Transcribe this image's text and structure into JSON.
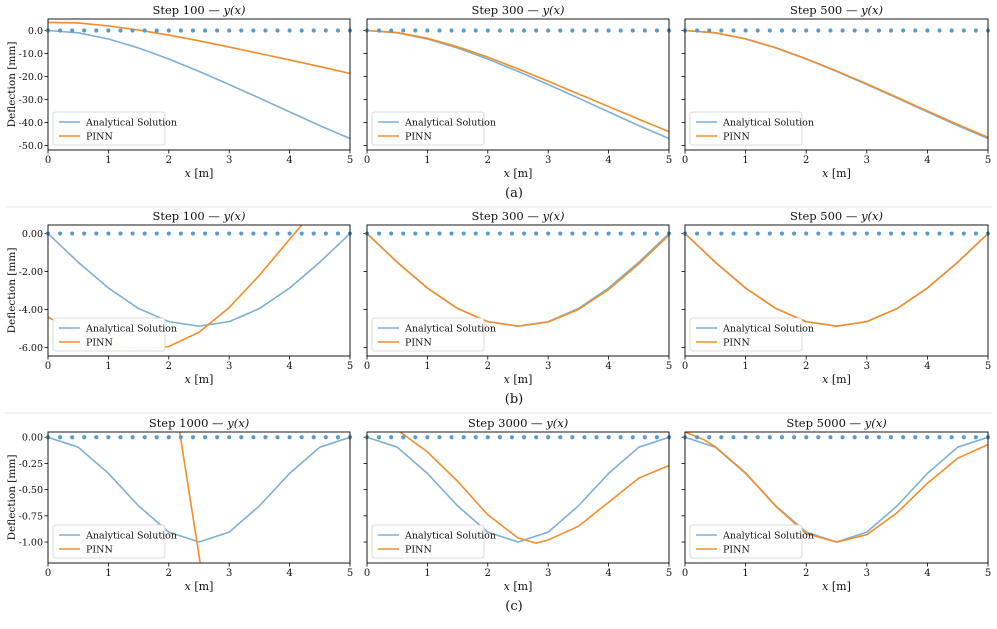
{
  "figure": {
    "rows": [
      {
        "label": "(a)",
        "ylabel": "Deflection [mm]",
        "ylim": [
          -52,
          5
        ],
        "yticks": [
          0,
          -10,
          -20,
          -30,
          -40,
          -50
        ],
        "ytick_labels": [
          "0.0",
          "-10.0",
          "-20.0",
          "-30.0",
          "-40.0",
          "-50.0"
        ],
        "panels": [
          {
            "title_prefix": "Step 100 — ",
            "title_math": "y(x)",
            "pinn": "a100"
          },
          {
            "title_prefix": "Step 300 — ",
            "title_math": "y(x)",
            "pinn": "a300"
          },
          {
            "title_prefix": "Step 500 — ",
            "title_math": "y(x)",
            "pinn": "a500"
          }
        ]
      },
      {
        "label": "(b)",
        "ylabel": "Deflection [mm]",
        "ylim": [
          -6.45,
          0.45
        ],
        "yticks": [
          0,
          -2,
          -4,
          -6
        ],
        "ytick_labels": [
          "0.00",
          "-2.00",
          "-4.00",
          "-6.00"
        ],
        "panels": [
          {
            "title_prefix": "Step 100 — ",
            "title_math": "y(x)",
            "pinn": "b100"
          },
          {
            "title_prefix": "Step 300 — ",
            "title_math": "y(x)",
            "pinn": "b300"
          },
          {
            "title_prefix": "Step 500 — ",
            "title_math": "y(x)",
            "pinn": "b500"
          }
        ]
      },
      {
        "label": "(c)",
        "ylabel": "Deflection [mm]",
        "ylim": [
          -1.2,
          0.05
        ],
        "yticks": [
          0,
          -0.25,
          -0.5,
          -0.75,
          -1.0
        ],
        "ytick_labels": [
          "0.00",
          "-0.25",
          "-0.50",
          "-0.75",
          "-1.00"
        ],
        "panels": [
          {
            "title_prefix": "Step 1000 — ",
            "title_math": "y(x)",
            "pinn": "c1000"
          },
          {
            "title_prefix": "Step 3000 — ",
            "title_math": "y(x)",
            "pinn": "c3000"
          },
          {
            "title_prefix": "Step 5000 — ",
            "title_math": "y(x)",
            "pinn": "c5000"
          }
        ]
      }
    ],
    "xlabel_var": "x",
    "xlabel_unit": " [m]",
    "legend": {
      "analytical": "Analytical Solution",
      "pinn": "PINN"
    },
    "colors": {
      "analytical": "#7eb0d5",
      "pinn": "#f28e2b",
      "points": "#5b9bc9"
    }
  },
  "chart_data": [
    {
      "type": "line",
      "title": "Row (a): Step 100 / 300 / 500 — y(x)",
      "xlabel": "x [m]",
      "ylabel": "Deflection [mm]",
      "xlim": [
        0,
        5
      ],
      "ylim": [
        -52,
        5
      ],
      "collocation_points_x": [
        0,
        0.2,
        0.4,
        0.6,
        0.8,
        1.0,
        1.2,
        1.4,
        1.6,
        1.8,
        2.0,
        2.2,
        2.4,
        2.6,
        2.8,
        3.0,
        3.2,
        3.4,
        3.6,
        3.8,
        4.0,
        4.2,
        4.4,
        4.6,
        4.8,
        5.0
      ],
      "analytical": {
        "x": [
          0,
          0.5,
          1,
          1.5,
          2,
          2.5,
          3,
          3.5,
          4,
          4.5,
          5
        ],
        "y": [
          0,
          -1.0,
          -3.7,
          -7.6,
          -12.4,
          -17.8,
          -23.5,
          -29.4,
          -35.4,
          -41.4,
          -47.0
        ]
      },
      "pinn_series": {
        "a100": {
          "x": [
            0,
            0.5,
            1,
            1.5,
            2,
            2.5,
            3,
            3.5,
            4,
            4.5,
            5
          ],
          "y": [
            3.5,
            3.3,
            2.0,
            0.2,
            -2.0,
            -4.5,
            -7.2,
            -10.0,
            -12.8,
            -15.7,
            -18.7
          ]
        },
        "a300": {
          "x": [
            0,
            0.5,
            1,
            1.5,
            2,
            2.5,
            3,
            3.5,
            4,
            4.5,
            5
          ],
          "y": [
            0,
            -0.9,
            -3.4,
            -7.1,
            -11.6,
            -16.7,
            -22.1,
            -27.6,
            -33.1,
            -38.6,
            -44.0
          ]
        },
        "a500": {
          "x": [
            0,
            0.5,
            1,
            1.5,
            2,
            2.5,
            3,
            3.5,
            4,
            4.5,
            5
          ],
          "y": [
            0,
            -1.0,
            -3.6,
            -7.5,
            -12.3,
            -17.6,
            -23.2,
            -29.1,
            -35.0,
            -40.9,
            -46.5
          ]
        }
      }
    },
    {
      "type": "line",
      "title": "Row (b): Step 100 / 300 / 500 — y(x)",
      "xlabel": "x [m]",
      "ylabel": "Deflection [mm]",
      "xlim": [
        0,
        5
      ],
      "ylim": [
        -6.45,
        0.45
      ],
      "collocation_points_x": [
        0,
        0.2,
        0.4,
        0.6,
        0.8,
        1.0,
        1.2,
        1.4,
        1.6,
        1.8,
        2.0,
        2.2,
        2.4,
        2.6,
        2.8,
        3.0,
        3.2,
        3.4,
        3.6,
        3.8,
        4.0,
        4.2,
        4.4,
        4.6,
        4.8,
        5.0
      ],
      "analytical": {
        "x": [
          0,
          0.5,
          1,
          1.5,
          2,
          2.5,
          3,
          3.5,
          4,
          4.5,
          5
        ],
        "y": [
          0,
          -1.51,
          -2.87,
          -3.95,
          -4.64,
          -4.88,
          -4.64,
          -3.95,
          -2.87,
          -1.51,
          0
        ]
      },
      "pinn_series": {
        "b100": {
          "x": [
            0,
            0.5,
            1,
            1.5,
            1.6,
            2,
            2.5,
            3,
            3.5,
            4,
            4.2
          ],
          "y": [
            -4.4,
            -5.25,
            -5.8,
            -6.1,
            -6.12,
            -5.95,
            -5.2,
            -3.9,
            -2.2,
            -0.3,
            0.45
          ]
        },
        "b300": {
          "x": [
            0,
            0.5,
            1,
            1.5,
            2,
            2.5,
            3,
            3.5,
            4,
            4.5,
            5
          ],
          "y": [
            0,
            -1.51,
            -2.87,
            -3.95,
            -4.64,
            -4.88,
            -4.66,
            -4.0,
            -2.95,
            -1.6,
            -0.08
          ]
        },
        "b500": {
          "x": [
            0,
            0.5,
            1,
            1.5,
            2,
            2.5,
            3,
            3.5,
            4,
            4.5,
            5
          ],
          "y": [
            0,
            -1.51,
            -2.87,
            -3.95,
            -4.64,
            -4.88,
            -4.64,
            -3.95,
            -2.87,
            -1.51,
            0
          ]
        }
      }
    },
    {
      "type": "line",
      "title": "Row (c): Step 1000 / 3000 / 5000 — y(x)",
      "xlabel": "x [m]",
      "ylabel": "Deflection [mm]",
      "xlim": [
        0,
        5
      ],
      "ylim": [
        -1.2,
        0.05
      ],
      "collocation_points_x": [
        0,
        0.2,
        0.4,
        0.6,
        0.8,
        1.0,
        1.2,
        1.4,
        1.6,
        1.8,
        2.0,
        2.2,
        2.4,
        2.6,
        2.8,
        3.0,
        3.2,
        3.4,
        3.6,
        3.8,
        4.0,
        4.2,
        4.4,
        4.6,
        4.8,
        5.0
      ],
      "analytical": {
        "x": [
          0,
          0.5,
          1,
          1.5,
          2,
          2.5,
          3,
          3.5,
          4,
          4.5,
          5
        ],
        "y": [
          0,
          -0.095,
          -0.345,
          -0.655,
          -0.905,
          -1.0,
          -0.905,
          -0.655,
          -0.345,
          -0.095,
          0
        ]
      },
      "pinn_series": {
        "c1000": {
          "x": [
            2.18,
            2.52
          ],
          "y": [
            0.05,
            -1.2
          ]
        },
        "c3000": {
          "x": [
            0.55,
            1,
            1.5,
            2,
            2.5,
            2.8,
            3,
            3.5,
            4,
            4.5,
            5
          ],
          "y": [
            0.05,
            -0.14,
            -0.42,
            -0.74,
            -0.96,
            -1.01,
            -0.98,
            -0.85,
            -0.62,
            -0.39,
            -0.27
          ]
        },
        "c5000": {
          "x": [
            0,
            0.3,
            0.5,
            1,
            1.5,
            2,
            2.5,
            3,
            3.5,
            4,
            4.5,
            5
          ],
          "y": [
            0.05,
            -0.02,
            -0.09,
            -0.34,
            -0.66,
            -0.92,
            -1.0,
            -0.93,
            -0.72,
            -0.44,
            -0.2,
            -0.07
          ]
        }
      }
    }
  ]
}
